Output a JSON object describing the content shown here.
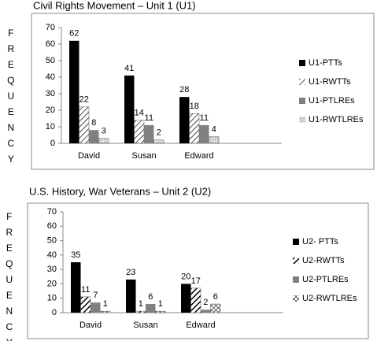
{
  "chart_data": [
    {
      "type": "bar",
      "title": "Civil Rights Movement – Unit 1 (U1)",
      "y_label": "FREQUENCY",
      "categories": [
        "David",
        "Susan",
        "Edward",
        null
      ],
      "series": [
        {
          "name": "U1-PTTs",
          "color": "#000000",
          "pattern": "solid",
          "values": [
            62,
            41,
            28,
            null
          ]
        },
        {
          "name": "U1-RWTTs",
          "color": "#000000",
          "pattern": "hatch",
          "values": [
            22,
            14,
            18,
            null
          ]
        },
        {
          "name": "U1-PTLREs",
          "color": "#808080",
          "pattern": "solid",
          "values": [
            8,
            11,
            11,
            null
          ]
        },
        {
          "name": "U1-RWTLREs",
          "color": "#a0a0a0",
          "pattern": "dots",
          "values": [
            3,
            2,
            4,
            null
          ]
        }
      ],
      "ylim": [
        0,
        70
      ],
      "yticks": [
        0,
        10,
        20,
        30,
        40,
        50,
        60,
        70
      ],
      "grid": false,
      "legend": "right"
    },
    {
      "type": "bar",
      "title": "U.S. History, War Veterans – Unit 2 (U2)",
      "y_label": "FREQUENCY",
      "categories": [
        "David",
        "Susan",
        "Edward",
        null
      ],
      "series": [
        {
          "name": "U2- PTTs",
          "color": "#000000",
          "pattern": "solid",
          "values": [
            35,
            23,
            20,
            null
          ]
        },
        {
          "name": "U2-RWTTs",
          "color": "#000000",
          "pattern": "stripes",
          "values": [
            11,
            1,
            17,
            null
          ]
        },
        {
          "name": "U2-PTLREs",
          "color": "#808080",
          "pattern": "solid",
          "values": [
            7,
            6,
            2,
            null
          ]
        },
        {
          "name": "U2-RWTLREs",
          "color": "#404040",
          "pattern": "crosshatch",
          "values": [
            1,
            1,
            6,
            null
          ]
        }
      ],
      "ylim": [
        0,
        70
      ],
      "yticks": [
        0,
        10,
        20,
        30,
        40,
        50,
        60,
        70
      ],
      "grid": false,
      "legend": "right"
    }
  ]
}
